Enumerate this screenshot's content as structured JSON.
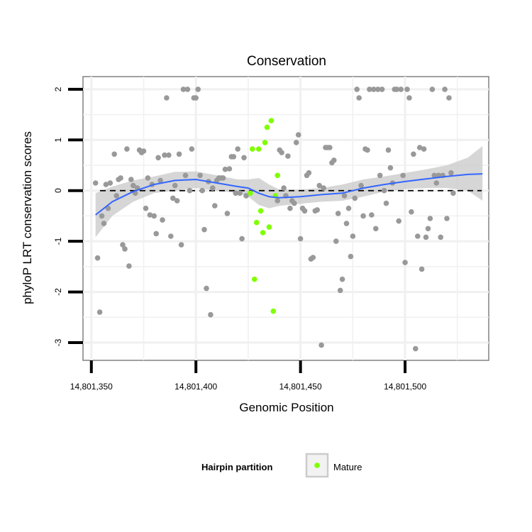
{
  "chart_data": {
    "type": "scatter",
    "title": "Conservation",
    "xlabel": "Genomic Position",
    "ylabel": "phyloP LRT conservation scores",
    "xlim": [
      14801346,
      14801540
    ],
    "ylim": [
      -3.35,
      2.25
    ],
    "x_ticks": [
      14801350,
      14801400,
      14801450,
      14801500
    ],
    "x_tick_labels": [
      "14,801,350",
      "14,801,400",
      "14,801,450",
      "14,801,500"
    ],
    "y_ticks": [
      -3,
      -2,
      -1,
      0,
      1,
      2
    ],
    "y_tick_labels": [
      "-3",
      "-2",
      "-1",
      "0",
      "1",
      "2"
    ],
    "grid": true,
    "reference_line": {
      "y": 0,
      "style": "dashed",
      "color": "#000000"
    },
    "legend": {
      "title": "Hairpin partition",
      "position": "bottom",
      "entries": [
        {
          "label": "Mature",
          "color": "#7FFF00"
        }
      ]
    },
    "colors": {
      "other": "#999999",
      "mature": "#7FFF00",
      "smooth": "#3366FF",
      "ribbon": "#C8C8C8"
    },
    "series": [
      {
        "name": "Other",
        "color": "#999999",
        "points": [
          [
            14801352,
            0.15
          ],
          [
            14801353,
            -1.33
          ],
          [
            14801354,
            -2.4
          ],
          [
            14801355,
            -0.5
          ],
          [
            14801356,
            -0.65
          ],
          [
            14801357,
            0.12
          ],
          [
            14801358,
            -0.35
          ],
          [
            14801359,
            0.15
          ],
          [
            14801361,
            0.72
          ],
          [
            14801362,
            -0.1
          ],
          [
            14801363,
            0.22
          ],
          [
            14801364,
            0.25
          ],
          [
            14801365,
            -1.07
          ],
          [
            14801366,
            -1.15
          ],
          [
            14801367,
            0.82
          ],
          [
            14801368,
            -1.49
          ],
          [
            14801369,
            0.22
          ],
          [
            14801370,
            0.1
          ],
          [
            14801371,
            -0.05
          ],
          [
            14801372,
            0.05
          ],
          [
            14801373,
            0.8
          ],
          [
            14801374,
            0.75
          ],
          [
            14801375,
            0.78
          ],
          [
            14801376,
            -0.35
          ],
          [
            14801377,
            0.25
          ],
          [
            14801378,
            -0.48
          ],
          [
            14801379,
            0.12
          ],
          [
            14801380,
            -0.5
          ],
          [
            14801381,
            -0.85
          ],
          [
            14801382,
            0.65
          ],
          [
            14801383,
            0.2
          ],
          [
            14801384,
            -0.58
          ],
          [
            14801385,
            0.7
          ],
          [
            14801386,
            1.83
          ],
          [
            14801387,
            0.7
          ],
          [
            14801388,
            -0.9
          ],
          [
            14801389,
            -0.15
          ],
          [
            14801390,
            0.1
          ],
          [
            14801391,
            -0.2
          ],
          [
            14801392,
            0.72
          ],
          [
            14801393,
            -1.07
          ],
          [
            14801394,
            2.0
          ],
          [
            14801395,
            0.3
          ],
          [
            14801396,
            2.0
          ],
          [
            14801397,
            0.0
          ],
          [
            14801398,
            0.82
          ],
          [
            14801399,
            1.83
          ],
          [
            14801400,
            1.83
          ],
          [
            14801401,
            2.0
          ],
          [
            14801402,
            0.3
          ],
          [
            14801403,
            0.0
          ],
          [
            14801404,
            -0.77
          ],
          [
            14801405,
            -1.93
          ],
          [
            14801406,
            0.18
          ],
          [
            14801407,
            -2.45
          ],
          [
            14801408,
            0.05
          ],
          [
            14801409,
            -0.3
          ],
          [
            14801410,
            0.2
          ],
          [
            14801411,
            0.25
          ],
          [
            14801412,
            0.25
          ],
          [
            14801413,
            0.25
          ],
          [
            14801414,
            0.42
          ],
          [
            14801415,
            -0.45
          ],
          [
            14801416,
            0.43
          ],
          [
            14801417,
            0.67
          ],
          [
            14801418,
            0.67
          ],
          [
            14801419,
            -0.05
          ],
          [
            14801420,
            0.82
          ],
          [
            14801421,
            -0.05
          ],
          [
            14801422,
            -0.95
          ],
          [
            14801423,
            0.65
          ],
          [
            14801424,
            -0.1
          ],
          [
            14801439,
            -0.2
          ],
          [
            14801440,
            0.8
          ],
          [
            14801441,
            0.75
          ],
          [
            14801442,
            0.05
          ],
          [
            14801443,
            -0.1
          ],
          [
            14801444,
            0.68
          ],
          [
            14801445,
            -0.35
          ],
          [
            14801446,
            -0.2
          ],
          [
            14801447,
            -0.25
          ],
          [
            14801448,
            0.95
          ],
          [
            14801449,
            1.1
          ],
          [
            14801450,
            -0.95
          ],
          [
            14801451,
            -0.35
          ],
          [
            14801452,
            -0.4
          ],
          [
            14801453,
            0.3
          ],
          [
            14801454,
            0.35
          ],
          [
            14801455,
            -1.35
          ],
          [
            14801456,
            -1.32
          ],
          [
            14801457,
            -0.4
          ],
          [
            14801458,
            -0.38
          ],
          [
            14801459,
            0.1
          ],
          [
            14801460,
            -3.05
          ],
          [
            14801461,
            0.05
          ],
          [
            14801462,
            0.85
          ],
          [
            14801463,
            0.85
          ],
          [
            14801464,
            0.85
          ],
          [
            14801465,
            0.55
          ],
          [
            14801466,
            0.6
          ],
          [
            14801467,
            -1.0
          ],
          [
            14801468,
            -0.45
          ],
          [
            14801469,
            -1.97
          ],
          [
            14801470,
            -1.75
          ],
          [
            14801471,
            -0.1
          ],
          [
            14801472,
            -0.65
          ],
          [
            14801473,
            -0.35
          ],
          [
            14801474,
            -1.3
          ],
          [
            14801475,
            -0.9
          ],
          [
            14801476,
            -0.15
          ],
          [
            14801477,
            2.0
          ],
          [
            14801478,
            1.83
          ],
          [
            14801479,
            0.1
          ],
          [
            14801480,
            -0.5
          ],
          [
            14801481,
            0.82
          ],
          [
            14801482,
            0.8
          ],
          [
            14801483,
            2.0
          ],
          [
            14801484,
            -0.48
          ],
          [
            14801485,
            2.0
          ],
          [
            14801486,
            -0.75
          ],
          [
            14801487,
            2.0
          ],
          [
            14801488,
            0.3
          ],
          [
            14801489,
            2.0
          ],
          [
            14801490,
            0.0
          ],
          [
            14801491,
            -0.25
          ],
          [
            14801492,
            0.8
          ],
          [
            14801493,
            0.45
          ],
          [
            14801494,
            0.15
          ],
          [
            14801495,
            2.0
          ],
          [
            14801496,
            2.0
          ],
          [
            14801497,
            -0.6
          ],
          [
            14801498,
            2.0
          ],
          [
            14801499,
            0.3
          ],
          [
            14801500,
            -1.42
          ],
          [
            14801501,
            2.0
          ],
          [
            14801502,
            1.83
          ],
          [
            14801503,
            -0.42
          ],
          [
            14801504,
            0.72
          ],
          [
            14801505,
            -3.12
          ],
          [
            14801506,
            -0.9
          ],
          [
            14801507,
            0.85
          ],
          [
            14801508,
            -1.55
          ],
          [
            14801509,
            0.82
          ],
          [
            14801510,
            -0.92
          ],
          [
            14801511,
            -0.75
          ],
          [
            14801512,
            -0.55
          ],
          [
            14801513,
            2.0
          ],
          [
            14801514,
            0.3
          ],
          [
            14801515,
            0.15
          ],
          [
            14801516,
            0.3
          ],
          [
            14801517,
            -0.92
          ],
          [
            14801518,
            0.3
          ],
          [
            14801519,
            2.0
          ],
          [
            14801520,
            -0.55
          ],
          [
            14801521,
            1.83
          ],
          [
            14801522,
            0.35
          ],
          [
            14801523,
            -0.05
          ]
        ]
      },
      {
        "name": "Mature",
        "color": "#7FFF00",
        "points": [
          [
            14801426,
            -0.05
          ],
          [
            14801427,
            0.82
          ],
          [
            14801428,
            -1.75
          ],
          [
            14801429,
            -0.63
          ],
          [
            14801430,
            0.82
          ],
          [
            14801431,
            -0.4
          ],
          [
            14801432,
            -0.83
          ],
          [
            14801433,
            0.95
          ],
          [
            14801434,
            1.25
          ],
          [
            14801435,
            -0.72
          ],
          [
            14801436,
            1.38
          ],
          [
            14801437,
            -2.38
          ],
          [
            14801438,
            -0.1
          ],
          [
            14801439,
            0.3
          ]
        ]
      }
    ],
    "smooth": {
      "method": "loess",
      "x": [
        14801352,
        14801360,
        14801370,
        14801380,
        14801390,
        14801400,
        14801410,
        14801420,
        14801425,
        14801430,
        14801435,
        14801440,
        14801450,
        14801460,
        14801470,
        14801480,
        14801490,
        14801500,
        14801510,
        14801520,
        14801530,
        14801537
      ],
      "y": [
        -0.48,
        -0.22,
        -0.02,
        0.12,
        0.2,
        0.22,
        0.15,
        0.08,
        0.05,
        -0.05,
        -0.12,
        -0.14,
        -0.12,
        -0.08,
        -0.05,
        0.05,
        0.12,
        0.18,
        0.23,
        0.28,
        0.32,
        0.33
      ],
      "lower": [
        -0.92,
        -0.5,
        -0.22,
        -0.05,
        0.0,
        0.05,
        0.0,
        -0.05,
        -0.12,
        -0.28,
        -0.35,
        -0.3,
        -0.26,
        -0.22,
        -0.2,
        -0.12,
        -0.02,
        0.03,
        0.05,
        0.05,
        0.0,
        -0.2
      ],
      "upper": [
        -0.05,
        0.08,
        0.2,
        0.28,
        0.37,
        0.38,
        0.3,
        0.22,
        0.22,
        0.25,
        0.12,
        0.02,
        0.02,
        0.05,
        0.12,
        0.22,
        0.28,
        0.35,
        0.42,
        0.5,
        0.65,
        0.88
      ]
    }
  }
}
